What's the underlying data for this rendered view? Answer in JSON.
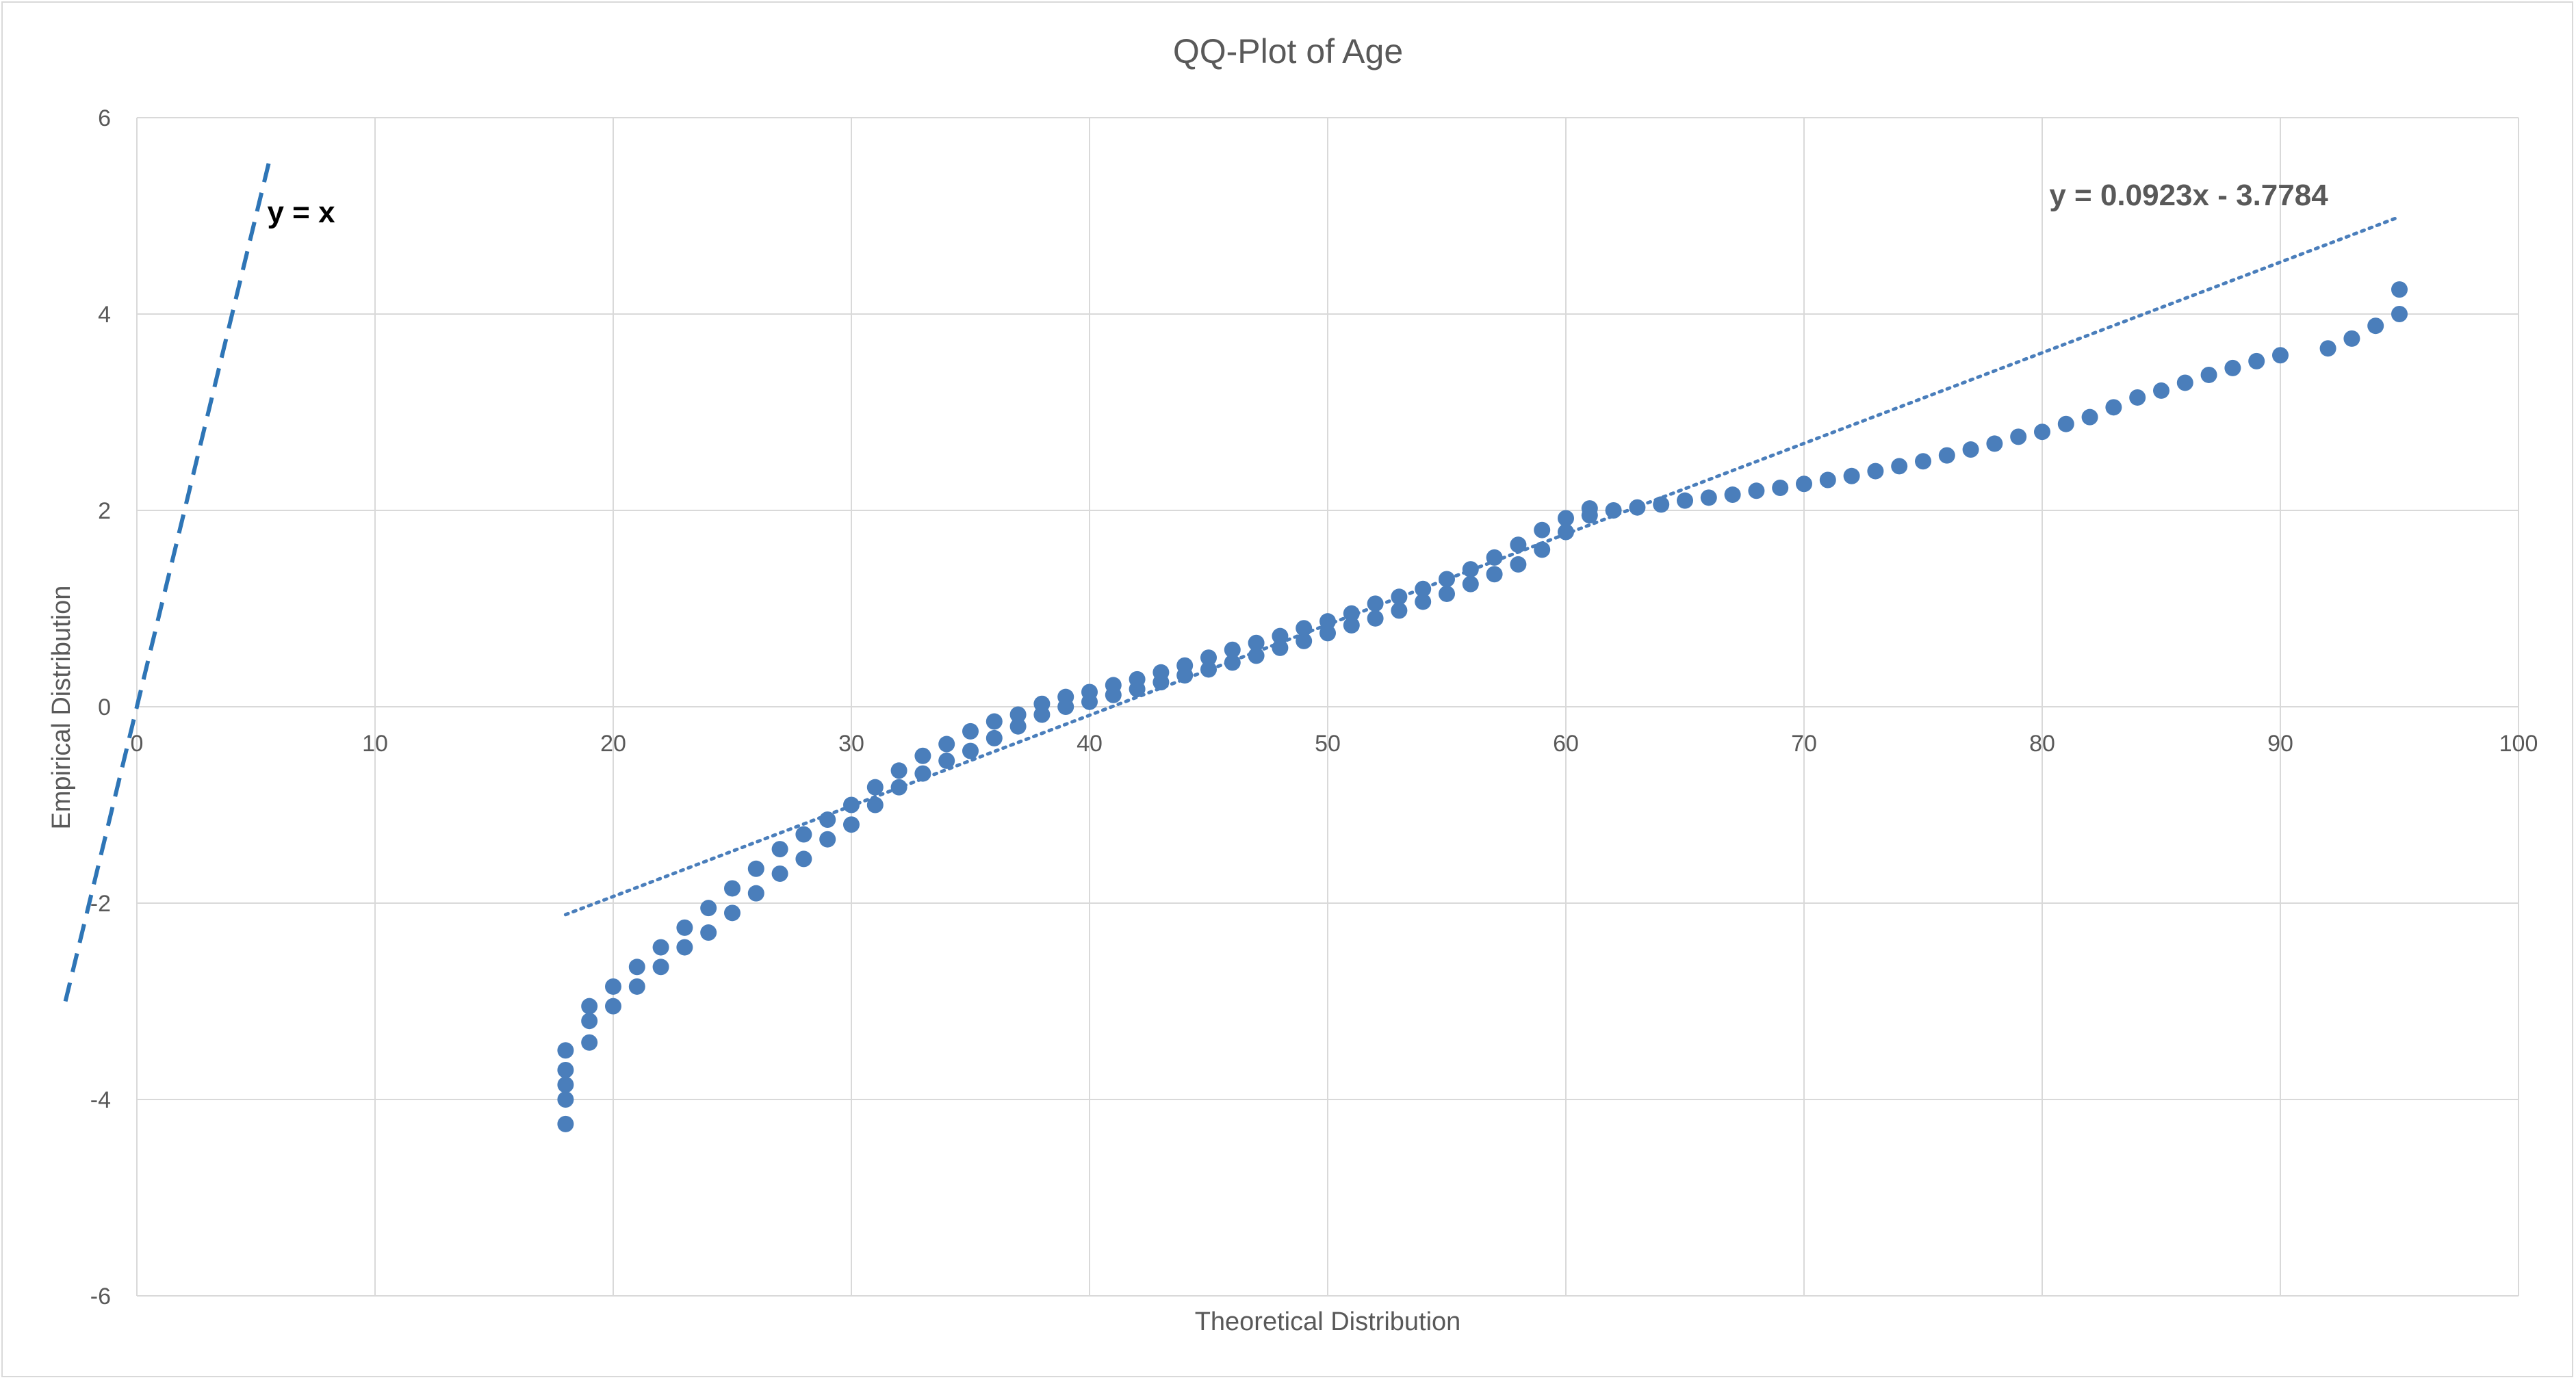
{
  "chart_data": {
    "type": "scatter",
    "title": "QQ-Plot of Age",
    "xlabel": "Theoretical Distribution",
    "ylabel": "Empirical Distribution",
    "xlim": [
      0,
      100
    ],
    "ylim": [
      -6,
      6
    ],
    "x_ticks": [
      "0",
      "10",
      "20",
      "30",
      "40",
      "50",
      "60",
      "70",
      "80",
      "90",
      "100"
    ],
    "y_ticks": [
      "6",
      "4",
      "2",
      "0",
      "-2",
      "-4",
      "-6"
    ],
    "grid": true,
    "legend": "none",
    "colors": {
      "points": "#4a7ebb",
      "trendline": "#4a7ebb",
      "reference_line": "#2e75b6",
      "grid": "#d9d9d9"
    },
    "series": [
      {
        "points": [
          [
            18,
            -4.25
          ],
          [
            18,
            -4.0
          ],
          [
            18,
            -3.85
          ],
          [
            18,
            -3.7
          ],
          [
            18,
            -3.5
          ],
          [
            19,
            -3.42
          ],
          [
            19,
            -3.2
          ],
          [
            19,
            -3.05
          ],
          [
            20,
            -3.05
          ],
          [
            20,
            -2.85
          ],
          [
            21,
            -2.85
          ],
          [
            21,
            -2.65
          ],
          [
            22,
            -2.65
          ],
          [
            22,
            -2.45
          ],
          [
            23,
            -2.45
          ],
          [
            23,
            -2.25
          ],
          [
            24,
            -2.3
          ],
          [
            24,
            -2.05
          ],
          [
            25,
            -2.1
          ],
          [
            25,
            -1.85
          ],
          [
            26,
            -1.9
          ],
          [
            26,
            -1.65
          ],
          [
            27,
            -1.7
          ],
          [
            27,
            -1.45
          ],
          [
            28,
            -1.55
          ],
          [
            28,
            -1.3
          ],
          [
            29,
            -1.35
          ],
          [
            29,
            -1.15
          ],
          [
            30,
            -1.2
          ],
          [
            30,
            -1.0
          ],
          [
            31,
            -1.0
          ],
          [
            31,
            -0.82
          ],
          [
            32,
            -0.82
          ],
          [
            32,
            -0.65
          ],
          [
            33,
            -0.68
          ],
          [
            33,
            -0.5
          ],
          [
            34,
            -0.55
          ],
          [
            34,
            -0.38
          ],
          [
            35,
            -0.45
          ],
          [
            35,
            -0.25
          ],
          [
            36,
            -0.32
          ],
          [
            36,
            -0.15
          ],
          [
            37,
            -0.2
          ],
          [
            37,
            -0.08
          ],
          [
            38,
            -0.08
          ],
          [
            38,
            0.03
          ],
          [
            39,
            0.0
          ],
          [
            39,
            0.1
          ],
          [
            40,
            0.05
          ],
          [
            40,
            0.15
          ],
          [
            41,
            0.12
          ],
          [
            41,
            0.22
          ],
          [
            42,
            0.18
          ],
          [
            42,
            0.28
          ],
          [
            43,
            0.25
          ],
          [
            43,
            0.35
          ],
          [
            44,
            0.32
          ],
          [
            44,
            0.42
          ],
          [
            45,
            0.38
          ],
          [
            45,
            0.5
          ],
          [
            46,
            0.45
          ],
          [
            46,
            0.58
          ],
          [
            47,
            0.52
          ],
          [
            47,
            0.65
          ],
          [
            48,
            0.6
          ],
          [
            48,
            0.72
          ],
          [
            49,
            0.67
          ],
          [
            49,
            0.8
          ],
          [
            50,
            0.75
          ],
          [
            50,
            0.87
          ],
          [
            51,
            0.83
          ],
          [
            51,
            0.95
          ],
          [
            52,
            0.9
          ],
          [
            52,
            1.05
          ],
          [
            53,
            0.98
          ],
          [
            53,
            1.12
          ],
          [
            54,
            1.07
          ],
          [
            54,
            1.2
          ],
          [
            55,
            1.15
          ],
          [
            55,
            1.3
          ],
          [
            56,
            1.25
          ],
          [
            56,
            1.4
          ],
          [
            57,
            1.35
          ],
          [
            57,
            1.52
          ],
          [
            58,
            1.45
          ],
          [
            58,
            1.65
          ],
          [
            59,
            1.6
          ],
          [
            59,
            1.8
          ],
          [
            60,
            1.78
          ],
          [
            60,
            1.92
          ],
          [
            61,
            1.95
          ],
          [
            61,
            2.02
          ],
          [
            62,
            2.0
          ],
          [
            63,
            2.03
          ],
          [
            64,
            2.06
          ],
          [
            65,
            2.1
          ],
          [
            66,
            2.13
          ],
          [
            67,
            2.16
          ],
          [
            68,
            2.2
          ],
          [
            69,
            2.23
          ],
          [
            70,
            2.27
          ],
          [
            71,
            2.31
          ],
          [
            72,
            2.35
          ],
          [
            73,
            2.4
          ],
          [
            74,
            2.45
          ],
          [
            75,
            2.5
          ],
          [
            76,
            2.56
          ],
          [
            77,
            2.62
          ],
          [
            78,
            2.68
          ],
          [
            79,
            2.75
          ],
          [
            80,
            2.8
          ],
          [
            81,
            2.88
          ],
          [
            82,
            2.95
          ],
          [
            83,
            3.05
          ],
          [
            84,
            3.15
          ],
          [
            85,
            3.22
          ],
          [
            86,
            3.3
          ],
          [
            87,
            3.38
          ],
          [
            88,
            3.45
          ],
          [
            89,
            3.52
          ],
          [
            90,
            3.58
          ],
          [
            92,
            3.65
          ],
          [
            93,
            3.75
          ],
          [
            94,
            3.88
          ],
          [
            95,
            4.0
          ],
          [
            95,
            4.25
          ]
        ]
      }
    ],
    "trendline": {
      "slope": 0.0923,
      "intercept": -3.7784,
      "x_range": [
        18,
        95
      ],
      "label": "y = 0.0923x - 3.7784"
    },
    "reference_line": {
      "slope": 1,
      "intercept": 0,
      "x_range": [
        -3,
        5.6
      ],
      "label": "y = x"
    }
  }
}
